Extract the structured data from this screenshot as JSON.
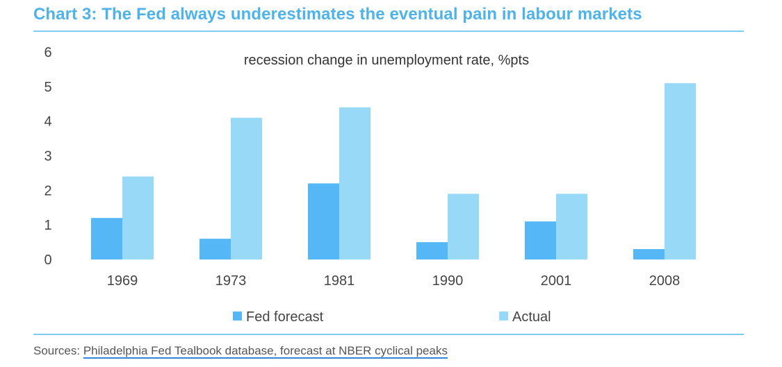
{
  "title": "Chart 3: The Fed always underestimates the eventual pain in labour markets",
  "source": {
    "prefix": "Sources: ",
    "link_text": "Philadelphia Fed Tealbook database, forecast at NBER cyclical peaks"
  },
  "colors": {
    "title": "#4db3ea",
    "rule": "#7ccbf1",
    "fed_forecast": "#55b7f5",
    "actual": "#99d9f8"
  },
  "chart_data": {
    "type": "bar",
    "title": "recession change in unemployment rate, %pts",
    "xlabel": "",
    "ylabel": "",
    "categories": [
      "1969",
      "1973",
      "1981",
      "1990",
      "2001",
      "2008"
    ],
    "series": [
      {
        "name": "Fed forecast",
        "color": "#55b7f5",
        "values": [
          1.2,
          0.6,
          2.2,
          0.5,
          1.1,
          0.3
        ]
      },
      {
        "name": "Actual",
        "color": "#99d9f8",
        "values": [
          2.4,
          4.1,
          4.4,
          1.9,
          1.9,
          5.1
        ]
      }
    ],
    "ylim": [
      0,
      6
    ],
    "yticks": [
      "0",
      "1",
      "2",
      "3",
      "4",
      "5",
      "6"
    ],
    "grid": false,
    "legend_position": "bottom"
  }
}
